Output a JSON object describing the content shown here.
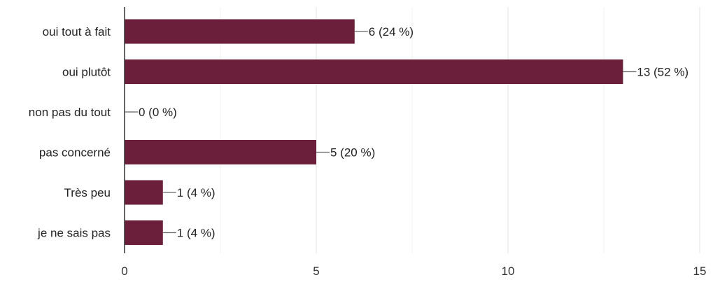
{
  "chart_data": {
    "type": "bar",
    "orientation": "horizontal",
    "categories": [
      "oui tout à fait",
      "oui plutôt",
      "non pas du tout",
      "pas concerné",
      "Très peu",
      "je ne sais pas"
    ],
    "values": [
      6,
      13,
      0,
      5,
      1,
      1
    ],
    "data_labels": [
      "6 (24 %)",
      "13 (52 %)",
      "0 (0 %)",
      "5 (20 %)",
      "1 (4 %)",
      "1 (4 %)"
    ],
    "xlim": [
      0,
      15
    ],
    "x_ticks": [
      0,
      5,
      10,
      15
    ],
    "x_tick_labels": [
      "0",
      "5",
      "10",
      "15"
    ],
    "grid": true,
    "colors": {
      "bar": "#6b1f3a",
      "grid_major": "#e3e3e3",
      "grid_minor": "#f1f1f1",
      "axis": "#333333",
      "leader": "#666666"
    }
  }
}
